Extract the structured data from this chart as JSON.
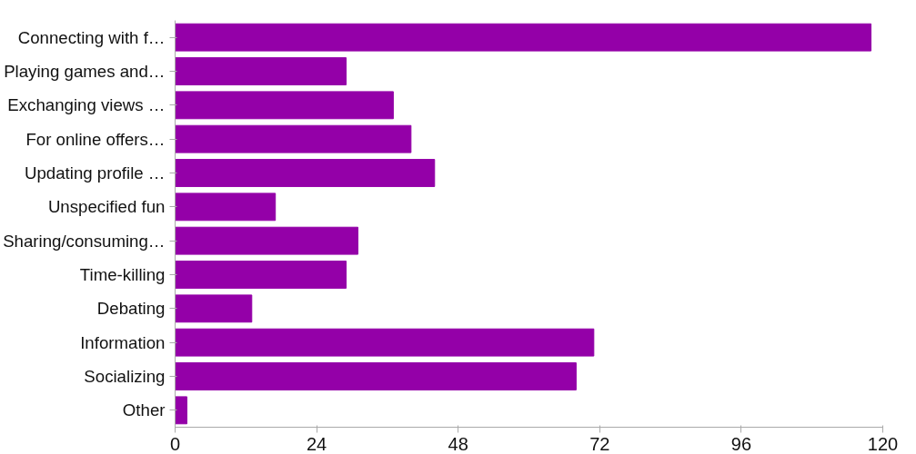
{
  "chart_data": {
    "type": "bar",
    "orientation": "horizontal",
    "categories": [
      "Connecting with f…",
      "Playing games and…",
      "Exchanging views …",
      "For online offers…",
      "Updating profile …",
      "Unspecified fun",
      "Sharing/consuming…",
      "Time-killing",
      "Debating",
      "Information",
      "Socializing",
      "Other"
    ],
    "values": [
      118,
      29,
      37,
      40,
      44,
      17,
      31,
      29,
      13,
      71,
      68,
      2
    ],
    "color": "#9400a8",
    "xlim": [
      0,
      120
    ],
    "xticks": [
      0,
      24,
      48,
      72,
      96,
      120
    ],
    "grid": false
  }
}
